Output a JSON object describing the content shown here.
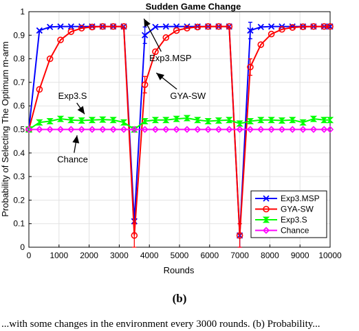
{
  "chart_data": {
    "type": "line",
    "title": "Sudden Game Change",
    "xlabel": "Rounds",
    "ylabel": "Probability of Selecting The Optimum m-arm",
    "xlim": [
      0,
      10000
    ],
    "ylim": [
      0,
      1
    ],
    "xticks": [
      0,
      1000,
      2000,
      3000,
      4000,
      5000,
      6000,
      7000,
      8000,
      9000,
      10000
    ],
    "yticks": [
      0,
      0.1,
      0.2,
      0.3,
      0.4,
      0.5,
      0.6,
      0.7,
      0.8,
      0.9,
      1
    ],
    "grid": true,
    "legend_position": "bottom-right",
    "series": [
      {
        "name": "Exp3.MSP",
        "color": "#0000ff",
        "marker": "x",
        "x": [
          0,
          350,
          700,
          1050,
          1400,
          1750,
          2100,
          2450,
          2800,
          3150,
          3500,
          3850,
          4200,
          4550,
          4900,
          5250,
          5600,
          5950,
          6300,
          6650,
          7000,
          7350,
          7700,
          8050,
          8400,
          8750,
          9100,
          9450,
          9800,
          10000
        ],
        "y": [
          0.5,
          0.92,
          0.935,
          0.937,
          0.937,
          0.937,
          0.937,
          0.937,
          0.937,
          0.937,
          0.11,
          0.9,
          0.935,
          0.937,
          0.937,
          0.937,
          0.937,
          0.937,
          0.937,
          0.937,
          0.05,
          0.92,
          0.935,
          0.937,
          0.937,
          0.937,
          0.937,
          0.937,
          0.937,
          0.937
        ]
      },
      {
        "name": "GYA-SW",
        "color": "#ff0000",
        "marker": "o",
        "x": [
          0,
          350,
          700,
          1050,
          1400,
          1750,
          2100,
          2450,
          2800,
          3150,
          3500,
          3850,
          4200,
          4550,
          4900,
          5250,
          5600,
          5950,
          6300,
          6650,
          7000,
          7350,
          7700,
          8050,
          8400,
          8750,
          9100,
          9450,
          9800,
          10000
        ],
        "y": [
          0.5,
          0.67,
          0.8,
          0.88,
          0.915,
          0.93,
          0.935,
          0.937,
          0.937,
          0.937,
          0.05,
          0.69,
          0.83,
          0.89,
          0.92,
          0.93,
          0.935,
          0.937,
          0.937,
          0.937,
          0.05,
          0.765,
          0.86,
          0.905,
          0.925,
          0.933,
          0.936,
          0.937,
          0.937,
          0.937
        ]
      },
      {
        "name": "Exp3.S",
        "color": "#00ff00",
        "marker": "hourglass",
        "x": [
          0,
          350,
          700,
          1050,
          1400,
          1750,
          2100,
          2450,
          2800,
          3150,
          3500,
          3850,
          4200,
          4550,
          4900,
          5250,
          5600,
          5950,
          6300,
          6650,
          7000,
          7350,
          7700,
          8050,
          8400,
          8750,
          9100,
          9450,
          9800,
          10000
        ],
        "y": [
          0.5,
          0.53,
          0.535,
          0.545,
          0.54,
          0.538,
          0.54,
          0.542,
          0.54,
          0.53,
          0.5,
          0.535,
          0.54,
          0.54,
          0.545,
          0.548,
          0.54,
          0.535,
          0.538,
          0.54,
          0.525,
          0.535,
          0.54,
          0.54,
          0.538,
          0.54,
          0.53,
          0.545,
          0.54,
          0.54
        ]
      },
      {
        "name": "Chance",
        "color": "#ff00ff",
        "marker": "diamond",
        "x": [
          0,
          350,
          700,
          1050,
          1400,
          1750,
          2100,
          2450,
          2800,
          3150,
          3500,
          3850,
          4200,
          4550,
          4900,
          5250,
          5600,
          5950,
          6300,
          6650,
          7000,
          7350,
          7700,
          8050,
          8400,
          8750,
          9100,
          9450,
          9800,
          10000
        ],
        "y": [
          0.5,
          0.5,
          0.5,
          0.5,
          0.5,
          0.5,
          0.5,
          0.5,
          0.5,
          0.5,
          0.5,
          0.5,
          0.5,
          0.5,
          0.5,
          0.5,
          0.5,
          0.5,
          0.5,
          0.5,
          0.5,
          0.5,
          0.5,
          0.5,
          0.5,
          0.5,
          0.5,
          0.5,
          0.5,
          0.5
        ]
      }
    ],
    "annotations": [
      {
        "text": "Exp3.MSP",
        "x": 4700,
        "y": 0.79,
        "arrow_to": [
          3820,
          0.97
        ]
      },
      {
        "text": "GYA-SW",
        "x": 5280,
        "y": 0.63,
        "arrow_to": [
          4230,
          0.74
        ]
      },
      {
        "text": "Exp3.S",
        "x": 1450,
        "y": 0.63,
        "arrow_to": [
          1850,
          0.565
        ]
      },
      {
        "text": "Chance",
        "x": 1450,
        "y": 0.36,
        "arrow_to": [
          1600,
          0.475
        ]
      }
    ]
  },
  "caption": "(b)",
  "bottom_text": "...with some changes in the environment every 3000 rounds. (b) Probability..."
}
